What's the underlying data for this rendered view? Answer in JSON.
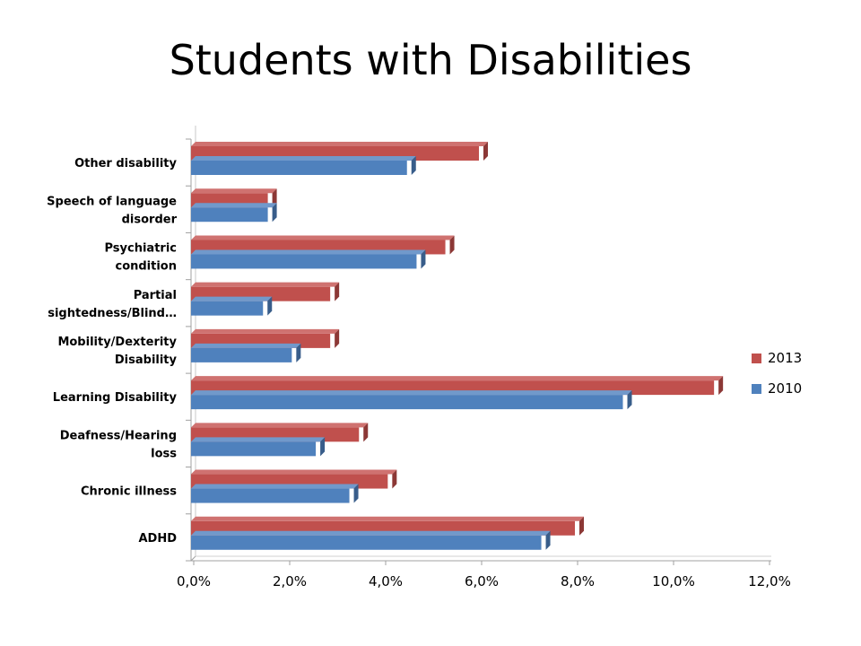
{
  "slide": {
    "title": "Students with Disabilities"
  },
  "colors": {
    "s2013_front": "#C0504D",
    "s2013_top": "#CF7270",
    "s2013_side": "#8C3836",
    "s2010_front": "#4F81BD",
    "s2010_top": "#7199CB",
    "s2010_side": "#385D8A"
  },
  "chart_data": {
    "type": "bar",
    "orientation": "horizontal",
    "style": "3d-clustered",
    "categories": [
      [
        "Other disability"
      ],
      [
        "Speech of language",
        "disorder"
      ],
      [
        "Psychiatric",
        "condition"
      ],
      [
        "Partial",
        "sightedness/Blind…"
      ],
      [
        "Mobility/Dexterity",
        "Disability"
      ],
      [
        "Learning Disability"
      ],
      [
        "Deafness/Hearing",
        "loss"
      ],
      [
        "Chronic illness"
      ],
      [
        "ADHD"
      ]
    ],
    "series": [
      {
        "name": "2013",
        "values": [
          6.0,
          1.6,
          5.3,
          2.9,
          2.9,
          10.9,
          3.5,
          4.1,
          8.0
        ]
      },
      {
        "name": "2010",
        "values": [
          4.5,
          1.6,
          4.7,
          1.5,
          2.1,
          9.0,
          2.6,
          3.3,
          7.3
        ]
      }
    ],
    "xlim": [
      0,
      12
    ],
    "xticks": [
      "0,0%",
      "2,0%",
      "4,0%",
      "6,0%",
      "8,0%",
      "10,0%",
      "12,0%"
    ],
    "legend_position": "right",
    "grid": false
  }
}
